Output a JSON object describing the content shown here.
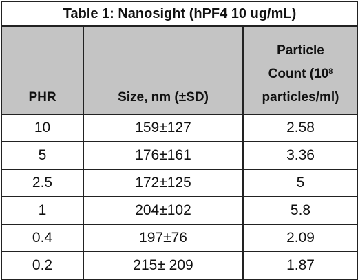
{
  "table": {
    "title": "Table 1: Nanosight (hPF4 10 ug/mL)",
    "header": {
      "phr": "PHR",
      "size": "Size, nm (±SD)",
      "count": {
        "line1": "Particle",
        "line2": "Count  (10",
        "exponent": "8",
        "line3": "particles/ml)"
      }
    },
    "rows": [
      [
        "10",
        "159±127",
        "2.58"
      ],
      [
        "5",
        "176±161",
        "3.36"
      ],
      [
        "2.5",
        "172±125",
        "5"
      ],
      [
        "1",
        "204±102",
        "5.8"
      ],
      [
        "0.4",
        "197±76",
        "2.09"
      ],
      [
        "0.2",
        "215± 209",
        "1.87"
      ]
    ]
  }
}
